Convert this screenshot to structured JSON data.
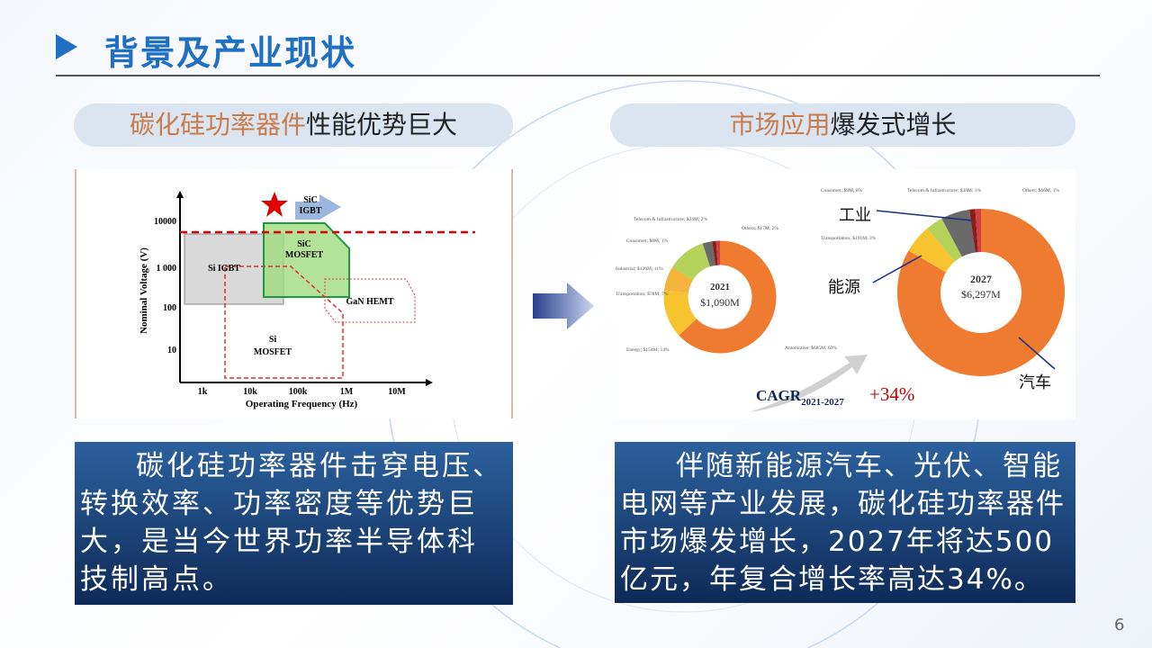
{
  "header": {
    "title": "背景及产业现状"
  },
  "left": {
    "heading": {
      "highlight": "碳化硅功率器件",
      "rest": "性能优势巨大"
    },
    "figure": {
      "y_axis_label": "Nominal Voltage (V)",
      "x_axis_label": "Operating Frequency (Hz)",
      "y_ticks": [
        "10000",
        "1 000",
        "100",
        "10"
      ],
      "x_ticks": [
        "1k",
        "10k",
        "100k",
        "1M",
        "10M"
      ],
      "regions": {
        "sic_igbt": [
          "SiC",
          "IGBT"
        ],
        "sic_mosfet": [
          "SiC",
          "MOSFET"
        ],
        "si_igbt": "Si IGBT",
        "gan_hemt": "GaN HEMT",
        "si_mosfet": [
          "Si",
          "MOSFET"
        ]
      }
    },
    "body": "碳化硅功率器件击穿电压、转换效率、功率密度等优势巨大，是当今世界功率半导体科技制高点。"
  },
  "right": {
    "heading": {
      "highlight": "市场应用",
      "rest": "爆发式增长"
    },
    "figure": {
      "donut_2021": {
        "year": "2021",
        "total": "$1,090M",
        "labels": [
          "Telecom & Infrastructure; $24M; 2%",
          "Others; $17M; 2%",
          "Consumer; $8M; 1%",
          "Industrial; $126M; 11%",
          "Transportation; $78M; 7%",
          "Energy; $154M; 14%",
          "Automotive; $685M; 63%"
        ]
      },
      "donut_2027": {
        "year": "2027",
        "total": "$6,297M",
        "labels": [
          "Consumer; $9M; 0%",
          "Telecom & Infrastructure; $38M; 1%",
          "Others; $66M; 1%",
          "Transportation; $191M; 3%"
        ]
      },
      "callouts": [
        "工业",
        "能源",
        "汽车"
      ],
      "cagr": {
        "label": "CAGR",
        "period": "2021-2027",
        "growth": "+34%"
      }
    },
    "body": "伴随新能源汽车、光伏、智能电网等产业发展，碳化硅功率器件市场爆发增长，2027年将达500亿元，年复合增长率高达34%。"
  },
  "page_number": "6"
}
